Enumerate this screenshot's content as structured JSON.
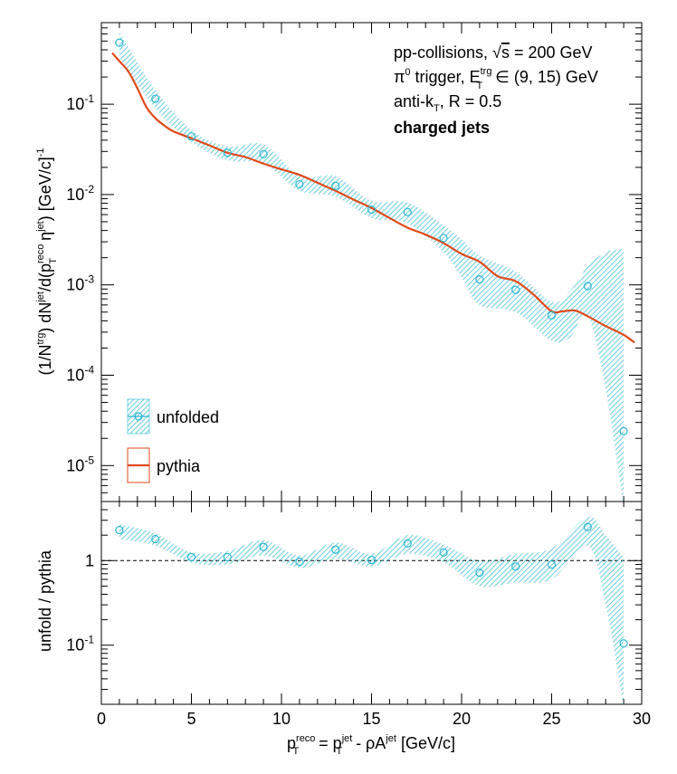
{
  "chart_data": [
    {
      "type": "line",
      "panel": "top",
      "ylabel_parts": {
        "a": "(1/N",
        "a_sup": "trg",
        "b": ") dN",
        "b_sup": "jet",
        "c": "/d(p",
        "c_sup": "reco",
        "c_sub": "T",
        "d": " η",
        "d_sup": "jet",
        "e": ") [GeV/c]",
        "e_sup": "-1"
      },
      "y_scale": "log",
      "ylim": [
        4e-06,
        0.8
      ],
      "xlim": [
        0,
        30
      ],
      "y_tick_labels": [
        {
          "base": "10",
          "exp": "-1",
          "value": 0.1
        },
        {
          "base": "10",
          "exp": "-2",
          "value": 0.01
        },
        {
          "base": "10",
          "exp": "-3",
          "value": 0.001
        },
        {
          "base": "10",
          "exp": "-4",
          "value": 0.0001
        },
        {
          "base": "10",
          "exp": "-5",
          "value": 1e-05
        }
      ],
      "annotations": {
        "line1_a": "pp-collisions, ",
        "line1_sqrt": "√",
        "line1_s": "s",
        "line1_b": " = 200 GeV",
        "line2_pi": "π",
        "line2_pi_sup": "0",
        "line2_a": " trigger, E",
        "line2_sup": "trg",
        "line2_sub": "T",
        "line2_b": " ∈ (9, 15) GeV",
        "line3_a": "anti-k",
        "line3_sub": "T",
        "line3_b": ", R = 0.5",
        "line4": "charged jets"
      },
      "legend": {
        "placement": "bottom-left",
        "items": [
          {
            "label": "unfolded",
            "color": "#2bb7d0"
          },
          {
            "label": "pythia",
            "color": "#e04a1a"
          }
        ]
      },
      "series": [
        {
          "name": "unfolded",
          "color": "#2bb7d0",
          "style": "markers-with-hatched-band",
          "x": [
            1,
            3,
            5,
            7,
            9,
            11,
            13,
            15,
            17,
            19,
            21,
            23,
            25,
            27,
            29
          ],
          "y": [
            0.48,
            0.115,
            0.044,
            0.029,
            0.028,
            0.013,
            0.0125,
            0.0068,
            0.0064,
            0.0033,
            0.00115,
            0.00088,
            0.00046,
            0.00097,
            2.4e-05
          ],
          "band_x": [
            1,
            3,
            5,
            7,
            9,
            11,
            13,
            15,
            17,
            19,
            20,
            21,
            23,
            25,
            26,
            27,
            28,
            29
          ],
          "band_low": [
            0.33,
            0.09,
            0.038,
            0.024,
            0.022,
            0.011,
            0.0095,
            0.0055,
            0.0048,
            0.0023,
            0.0012,
            0.0006,
            0.0005,
            0.00024,
            0.00026,
            0.00045,
            7e-05,
            3.5e-06
          ],
          "band_high": [
            0.62,
            0.145,
            0.052,
            0.034,
            0.036,
            0.016,
            0.016,
            0.0085,
            0.0082,
            0.0046,
            0.0032,
            0.0021,
            0.0014,
            0.00065,
            0.00085,
            0.0016,
            0.0023,
            0.0025
          ]
        },
        {
          "name": "pythia",
          "color": "#e04a1a",
          "style": "line",
          "x": [
            0.6,
            1,
            1.5,
            2,
            2.5,
            3,
            3.5,
            4,
            5,
            6,
            7,
            8,
            9,
            10,
            11,
            12,
            13,
            14,
            15,
            16,
            17,
            18,
            19,
            20,
            21,
            22,
            23,
            24,
            25,
            25.6,
            26.3,
            27,
            28,
            29,
            29.6
          ],
          "y": [
            0.37,
            0.3,
            0.23,
            0.15,
            0.093,
            0.07,
            0.058,
            0.05,
            0.042,
            0.035,
            0.029,
            0.026,
            0.022,
            0.019,
            0.0165,
            0.0135,
            0.011,
            0.0088,
            0.0071,
            0.0055,
            0.0043,
            0.0036,
            0.0029,
            0.0022,
            0.0018,
            0.00125,
            0.0011,
            0.00078,
            0.00051,
            0.00051,
            0.00052,
            0.00045,
            0.00035,
            0.00028,
            0.00023
          ]
        }
      ]
    },
    {
      "type": "scatter",
      "panel": "bottom",
      "ylabel": "unfold / pythia",
      "xlabel_parts": {
        "a": "p",
        "a_sup": "reco",
        "a_sub": "T",
        "b": " = p",
        "b_sup": "jet",
        "b_sub": "T",
        "c": " - ρA",
        "c_sup": "jet",
        "d": " [GeV/c]"
      },
      "y_scale": "log",
      "ylim": [
        0.02,
        5
      ],
      "xlim": [
        0,
        30
      ],
      "x_tick_labels": [
        "0",
        "5",
        "10",
        "15",
        "20",
        "25",
        "30"
      ],
      "x_tick_values": [
        0,
        5,
        10,
        15,
        20,
        25,
        30
      ],
      "y_tick_labels": [
        {
          "base": "1",
          "exp": "",
          "value": 1
        },
        {
          "base": "10",
          "exp": "-1",
          "value": 0.1
        }
      ],
      "reference_line": 1,
      "series": [
        {
          "name": "unfold / pythia",
          "color": "#2bb7d0",
          "x": [
            1,
            3,
            5,
            7,
            9,
            11,
            13,
            15,
            17,
            19,
            21,
            23,
            25,
            27,
            29
          ],
          "y": [
            2.3,
            1.8,
            1.1,
            1.1,
            1.45,
            0.97,
            1.35,
            1.02,
            1.6,
            1.25,
            0.72,
            0.85,
            0.9,
            2.5,
            0.105
          ],
          "band_x": [
            1,
            3,
            5,
            7,
            9,
            11,
            13,
            15,
            17,
            19,
            21,
            23,
            25,
            27,
            28,
            29
          ],
          "band_low": [
            1.8,
            1.5,
            0.95,
            0.9,
            1.15,
            0.82,
            1.05,
            0.85,
            1.2,
            0.95,
            0.5,
            0.55,
            0.6,
            1.5,
            0.3,
            0.018
          ],
          "band_high": [
            2.7,
            2.1,
            1.25,
            1.3,
            1.75,
            1.15,
            1.65,
            1.2,
            2.0,
            1.55,
            1.0,
            1.2,
            1.4,
            3.3,
            2.0,
            1.1
          ]
        }
      ]
    }
  ]
}
